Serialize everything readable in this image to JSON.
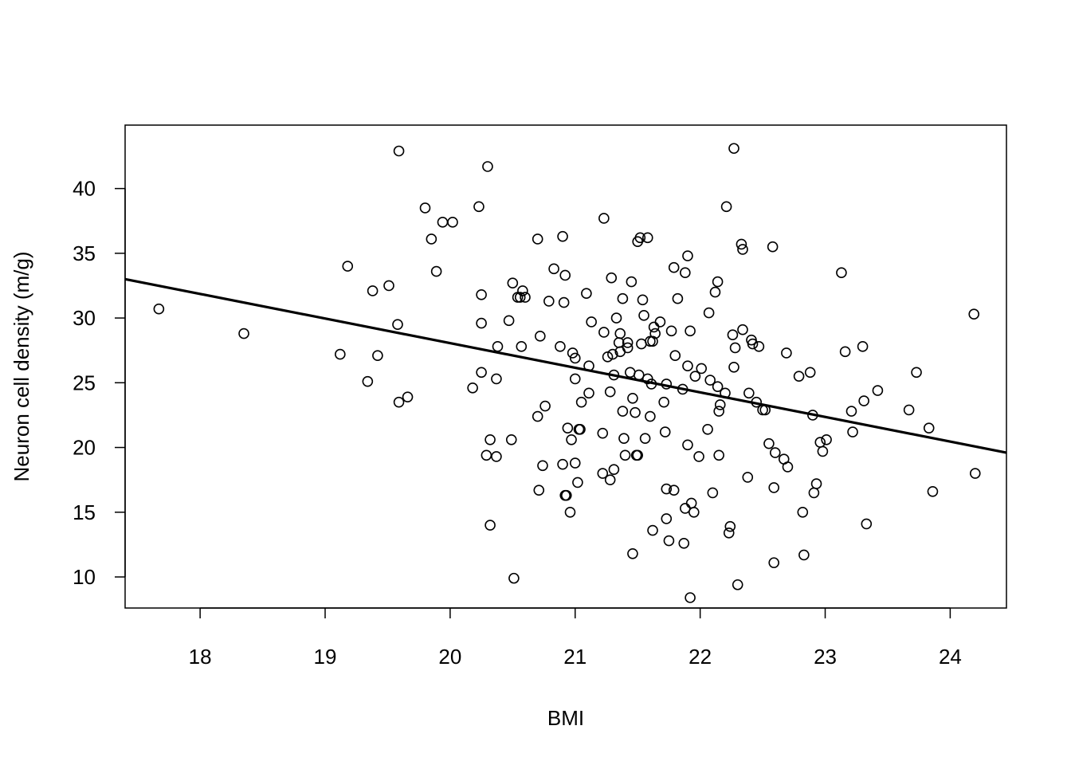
{
  "chart_data": {
    "type": "scatter",
    "title": "",
    "xlabel": "BMI",
    "ylabel": "Neuron cell density (m/g)",
    "xlim": [
      17.4,
      24.45
    ],
    "ylim": [
      7.6,
      44.9
    ],
    "xticks": [
      18,
      19,
      20,
      21,
      22,
      23,
      24
    ],
    "yticks": [
      10,
      15,
      20,
      25,
      30,
      35,
      40
    ],
    "grid": false,
    "legend": "none",
    "point_style": "open-circle",
    "colors": {
      "points": "#000000",
      "line": "#000000",
      "background": "#ffffff"
    },
    "fit_line": {
      "x": [
        17.4,
        24.45
      ],
      "y": [
        33.0,
        19.6
      ]
    },
    "points": [
      [
        17.67,
        30.7
      ],
      [
        18.35,
        28.8
      ],
      [
        19.12,
        27.2
      ],
      [
        19.18,
        34.0
      ],
      [
        19.34,
        25.1
      ],
      [
        19.38,
        32.1
      ],
      [
        19.42,
        27.1
      ],
      [
        19.51,
        32.5
      ],
      [
        19.58,
        29.5
      ],
      [
        19.59,
        23.5
      ],
      [
        19.59,
        42.9
      ],
      [
        19.66,
        23.9
      ],
      [
        19.8,
        38.5
      ],
      [
        19.85,
        36.1
      ],
      [
        19.89,
        33.6
      ],
      [
        19.94,
        37.4
      ],
      [
        20.02,
        37.4
      ],
      [
        20.18,
        24.6
      ],
      [
        20.23,
        38.6
      ],
      [
        20.25,
        25.8
      ],
      [
        20.25,
        29.6
      ],
      [
        20.25,
        31.8
      ],
      [
        20.29,
        19.4
      ],
      [
        20.3,
        41.7
      ],
      [
        20.32,
        14.0
      ],
      [
        20.32,
        20.6
      ],
      [
        20.37,
        19.3
      ],
      [
        20.37,
        25.3
      ],
      [
        20.38,
        27.8
      ],
      [
        20.47,
        29.8
      ],
      [
        20.49,
        20.6
      ],
      [
        20.5,
        32.7
      ],
      [
        20.51,
        9.9
      ],
      [
        20.54,
        31.6
      ],
      [
        20.56,
        31.6
      ],
      [
        20.57,
        27.8
      ],
      [
        20.58,
        32.1
      ],
      [
        20.6,
        31.6
      ],
      [
        20.7,
        36.1
      ],
      [
        20.7,
        22.4
      ],
      [
        20.71,
        16.7
      ],
      [
        20.72,
        28.6
      ],
      [
        20.74,
        18.6
      ],
      [
        20.76,
        23.2
      ],
      [
        20.79,
        31.3
      ],
      [
        20.83,
        33.8
      ],
      [
        20.88,
        27.8
      ],
      [
        20.9,
        36.3
      ],
      [
        20.9,
        18.7
      ],
      [
        20.91,
        31.2
      ],
      [
        20.92,
        33.3
      ],
      [
        20.92,
        16.3
      ],
      [
        20.93,
        16.3
      ],
      [
        20.94,
        21.5
      ],
      [
        20.96,
        15.0
      ],
      [
        20.97,
        20.6
      ],
      [
        20.98,
        27.3
      ],
      [
        21.0,
        25.3
      ],
      [
        21.0,
        26.9
      ],
      [
        21.0,
        18.8
      ],
      [
        21.02,
        17.3
      ],
      [
        21.03,
        21.4
      ],
      [
        21.04,
        21.4
      ],
      [
        21.05,
        23.5
      ],
      [
        21.09,
        31.9
      ],
      [
        21.11,
        24.2
      ],
      [
        21.11,
        26.3
      ],
      [
        21.13,
        29.7
      ],
      [
        21.22,
        21.1
      ],
      [
        21.22,
        18.0
      ],
      [
        21.23,
        37.7
      ],
      [
        21.23,
        28.9
      ],
      [
        21.26,
        27.0
      ],
      [
        21.28,
        24.3
      ],
      [
        21.28,
        17.5
      ],
      [
        21.29,
        33.1
      ],
      [
        21.3,
        27.2
      ],
      [
        21.31,
        18.3
      ],
      [
        21.31,
        25.6
      ],
      [
        21.33,
        30.0
      ],
      [
        21.35,
        28.1
      ],
      [
        21.36,
        27.4
      ],
      [
        21.36,
        28.8
      ],
      [
        21.38,
        22.8
      ],
      [
        21.38,
        31.5
      ],
      [
        21.39,
        20.7
      ],
      [
        21.4,
        19.4
      ],
      [
        21.42,
        28.1
      ],
      [
        21.42,
        27.7
      ],
      [
        21.44,
        25.8
      ],
      [
        21.45,
        32.8
      ],
      [
        21.46,
        23.8
      ],
      [
        21.46,
        11.8
      ],
      [
        21.48,
        22.7
      ],
      [
        21.49,
        19.4
      ],
      [
        21.5,
        19.4
      ],
      [
        21.5,
        35.9
      ],
      [
        21.51,
        25.6
      ],
      [
        21.52,
        36.2
      ],
      [
        21.53,
        28.0
      ],
      [
        21.54,
        31.4
      ],
      [
        21.55,
        30.2
      ],
      [
        21.56,
        20.7
      ],
      [
        21.58,
        36.2
      ],
      [
        21.58,
        25.3
      ],
      [
        21.6,
        22.4
      ],
      [
        21.6,
        28.2
      ],
      [
        21.61,
        24.9
      ],
      [
        21.62,
        28.2
      ],
      [
        21.62,
        13.6
      ],
      [
        21.63,
        29.3
      ],
      [
        21.64,
        28.8
      ],
      [
        21.68,
        29.7
      ],
      [
        21.71,
        23.5
      ],
      [
        21.72,
        21.2
      ],
      [
        21.73,
        16.8
      ],
      [
        21.73,
        24.9
      ],
      [
        21.73,
        14.5
      ],
      [
        21.75,
        12.8
      ],
      [
        21.77,
        29.0
      ],
      [
        21.79,
        16.7
      ],
      [
        21.79,
        33.9
      ],
      [
        21.8,
        27.1
      ],
      [
        21.82,
        31.5
      ],
      [
        21.86,
        24.5
      ],
      [
        21.87,
        12.6
      ],
      [
        21.88,
        15.3
      ],
      [
        21.88,
        33.5
      ],
      [
        21.9,
        26.3
      ],
      [
        21.9,
        20.2
      ],
      [
        21.9,
        34.8
      ],
      [
        21.92,
        29.0
      ],
      [
        21.92,
        8.4
      ],
      [
        21.93,
        15.7
      ],
      [
        21.95,
        15.0
      ],
      [
        21.96,
        25.5
      ],
      [
        21.99,
        19.3
      ],
      [
        22.01,
        26.1
      ],
      [
        22.06,
        21.4
      ],
      [
        22.07,
        30.4
      ],
      [
        22.08,
        25.2
      ],
      [
        22.1,
        16.5
      ],
      [
        22.12,
        32.0
      ],
      [
        22.14,
        24.7
      ],
      [
        22.14,
        32.8
      ],
      [
        22.15,
        22.8
      ],
      [
        22.15,
        19.4
      ],
      [
        22.16,
        23.3
      ],
      [
        22.2,
        24.2
      ],
      [
        22.21,
        38.6
      ],
      [
        22.23,
        13.4
      ],
      [
        22.24,
        13.9
      ],
      [
        22.26,
        28.7
      ],
      [
        22.27,
        26.2
      ],
      [
        22.27,
        43.1
      ],
      [
        22.28,
        27.7
      ],
      [
        22.3,
        9.4
      ],
      [
        22.33,
        35.7
      ],
      [
        22.34,
        35.3
      ],
      [
        22.34,
        29.1
      ],
      [
        22.38,
        17.7
      ],
      [
        22.39,
        24.2
      ],
      [
        22.41,
        28.3
      ],
      [
        22.42,
        28.0
      ],
      [
        22.45,
        23.5
      ],
      [
        22.47,
        27.8
      ],
      [
        22.5,
        22.9
      ],
      [
        22.52,
        22.9
      ],
      [
        22.55,
        20.3
      ],
      [
        22.58,
        35.5
      ],
      [
        22.59,
        16.9
      ],
      [
        22.59,
        11.1
      ],
      [
        22.6,
        19.6
      ],
      [
        22.67,
        19.1
      ],
      [
        22.69,
        27.3
      ],
      [
        22.7,
        18.5
      ],
      [
        22.79,
        25.5
      ],
      [
        22.82,
        15.0
      ],
      [
        22.83,
        11.7
      ],
      [
        22.88,
        25.8
      ],
      [
        22.9,
        22.5
      ],
      [
        22.91,
        16.5
      ],
      [
        22.93,
        17.2
      ],
      [
        22.96,
        20.4
      ],
      [
        22.98,
        19.7
      ],
      [
        23.01,
        20.6
      ],
      [
        23.13,
        33.5
      ],
      [
        23.16,
        27.4
      ],
      [
        23.21,
        22.8
      ],
      [
        23.22,
        21.2
      ],
      [
        23.3,
        27.8
      ],
      [
        23.31,
        23.6
      ],
      [
        23.33,
        14.1
      ],
      [
        23.42,
        24.4
      ],
      [
        23.67,
        22.9
      ],
      [
        23.73,
        25.8
      ],
      [
        23.83,
        21.5
      ],
      [
        23.86,
        16.6
      ],
      [
        24.19,
        30.3
      ],
      [
        24.2,
        18.0
      ]
    ]
  }
}
